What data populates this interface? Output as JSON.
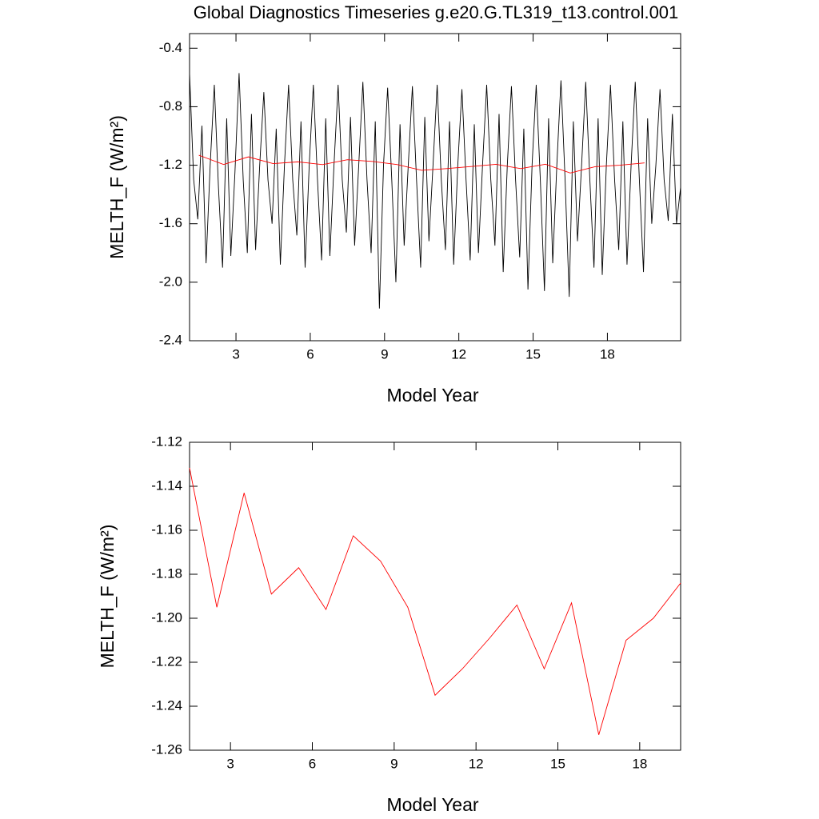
{
  "chart_data": [
    {
      "type": "line",
      "title": "Global Diagnostics Timeseries g.e20.G.TL319_t13.control.001",
      "xlabel": "Model Year",
      "ylabel": "MELTH_F (W/m²)",
      "xlim": [
        1.125,
        20.958
      ],
      "xticks": [
        3,
        6,
        9,
        12,
        15,
        18
      ],
      "ylim": [
        -2.4,
        -0.3
      ],
      "yticks": [
        -0.4,
        -0.8,
        -1.2,
        -1.6,
        {
          "value": -2.0,
          "label": "-2.0"
        },
        -2.4
      ],
      "series": [
        {
          "color": "#000000",
          "x": [
            1.125,
            1.292,
            1.458,
            1.625,
            1.792,
            1.958,
            2.125,
            2.292,
            2.458,
            2.625,
            2.792,
            2.958,
            3.125,
            3.292,
            3.458,
            3.625,
            3.792,
            3.958,
            4.125,
            4.292,
            4.458,
            4.625,
            4.792,
            4.958,
            5.125,
            5.292,
            5.458,
            5.625,
            5.792,
            5.958,
            6.125,
            6.292,
            6.458,
            6.625,
            6.792,
            6.958,
            7.125,
            7.292,
            7.458,
            7.625,
            7.792,
            7.958,
            8.125,
            8.292,
            8.458,
            8.625,
            8.792,
            8.958,
            9.125,
            9.292,
            9.458,
            9.625,
            9.792,
            9.958,
            10.125,
            10.292,
            10.458,
            10.625,
            10.792,
            10.958,
            11.125,
            11.292,
            11.458,
            11.625,
            11.792,
            11.958,
            12.125,
            12.292,
            12.458,
            12.625,
            12.792,
            12.958,
            13.125,
            13.292,
            13.458,
            13.625,
            13.792,
            13.958,
            14.125,
            14.292,
            14.458,
            14.625,
            14.792,
            14.958,
            15.125,
            15.292,
            15.458,
            15.625,
            15.792,
            15.958,
            16.125,
            16.292,
            16.458,
            16.625,
            16.792,
            16.958,
            17.125,
            17.292,
            17.458,
            17.625,
            17.792,
            17.958,
            18.125,
            18.292,
            18.458,
            18.625,
            18.792,
            18.958,
            19.125,
            19.292,
            19.458,
            19.625,
            19.792,
            19.958,
            20.125,
            20.292,
            20.458,
            20.625,
            20.792,
            20.958
          ],
          "values": [
            -0.57,
            -1.3,
            -1.57,
            -0.93,
            -1.87,
            -1.2,
            -0.65,
            -1.35,
            -1.9,
            -0.88,
            -1.82,
            -1.25,
            -0.57,
            -1.3,
            -1.8,
            -0.85,
            -1.78,
            -1.2,
            -0.7,
            -1.3,
            -1.6,
            -0.95,
            -1.88,
            -1.2,
            -0.65,
            -1.3,
            -1.68,
            -0.9,
            -1.9,
            -1.2,
            -0.65,
            -1.3,
            -1.85,
            -0.88,
            -1.82,
            -1.2,
            -0.65,
            -1.3,
            -1.66,
            -0.87,
            -1.75,
            -1.2,
            -0.63,
            -1.3,
            -1.8,
            -0.9,
            -2.18,
            -1.2,
            -0.67,
            -1.3,
            -2.0,
            -0.92,
            -1.75,
            -1.2,
            -0.66,
            -1.3,
            -1.9,
            -0.87,
            -1.72,
            -1.2,
            -0.65,
            -1.3,
            -1.78,
            -0.9,
            -1.88,
            -1.2,
            -0.68,
            -1.3,
            -1.85,
            -0.92,
            -1.8,
            -1.2,
            -0.65,
            -1.3,
            -1.75,
            -0.85,
            -1.93,
            -1.2,
            -0.66,
            -1.3,
            -1.83,
            -0.95,
            -2.05,
            -1.2,
            -0.65,
            -1.3,
            -2.06,
            -0.88,
            -1.87,
            -1.2,
            -0.62,
            -1.3,
            -2.1,
            -0.9,
            -1.72,
            -1.2,
            -0.63,
            -1.3,
            -1.9,
            -0.88,
            -1.95,
            -1.2,
            -0.65,
            -1.3,
            -1.78,
            -0.9,
            -1.88,
            -1.2,
            -0.63,
            -1.3,
            -1.93,
            -0.88,
            -1.6,
            -1.2,
            -0.68,
            -1.3,
            -1.58,
            -0.85,
            -1.6,
            -1.35
          ]
        },
        {
          "color": "#ff0000",
          "x": [
            1.5,
            2.5,
            3.5,
            4.5,
            5.5,
            6.5,
            7.5,
            8.5,
            9.5,
            10.5,
            11.5,
            12.5,
            13.5,
            14.5,
            15.5,
            16.5,
            17.5,
            18.5,
            19.5
          ],
          "values": [
            -1.1316,
            -1.195,
            -1.143,
            -1.189,
            -1.177,
            -1.196,
            -1.1625,
            -1.174,
            -1.195,
            -1.235,
            -1.223,
            -1.209,
            -1.194,
            -1.223,
            -1.193,
            -1.253,
            -1.21,
            -1.2,
            -1.184
          ]
        }
      ]
    },
    {
      "type": "line",
      "xlabel": "Model Year",
      "ylabel": "MELTH_F (W/m²)",
      "xlim": [
        1.5,
        19.5
      ],
      "xticks": [
        3,
        6,
        9,
        12,
        15,
        18
      ],
      "ylim": [
        -1.26,
        -1.12
      ],
      "yticks": [
        -1.12,
        -1.14,
        -1.16,
        -1.18,
        {
          "value": -1.2,
          "label": "-1.20"
        },
        -1.22,
        -1.24,
        -1.26
      ],
      "series": [
        {
          "color": "#ff0000",
          "x": [
            1.5,
            2.5,
            3.5,
            4.5,
            5.5,
            6.5,
            7.5,
            8.5,
            9.5,
            10.5,
            11.5,
            12.5,
            13.5,
            14.5,
            15.5,
            16.5,
            17.5,
            18.5,
            19.5
          ],
          "values": [
            -1.1316,
            -1.195,
            -1.143,
            -1.189,
            -1.177,
            -1.196,
            -1.1625,
            -1.174,
            -1.195,
            -1.235,
            -1.223,
            -1.209,
            -1.194,
            -1.223,
            -1.193,
            -1.253,
            -1.21,
            -1.2,
            -1.184
          ]
        }
      ]
    }
  ]
}
